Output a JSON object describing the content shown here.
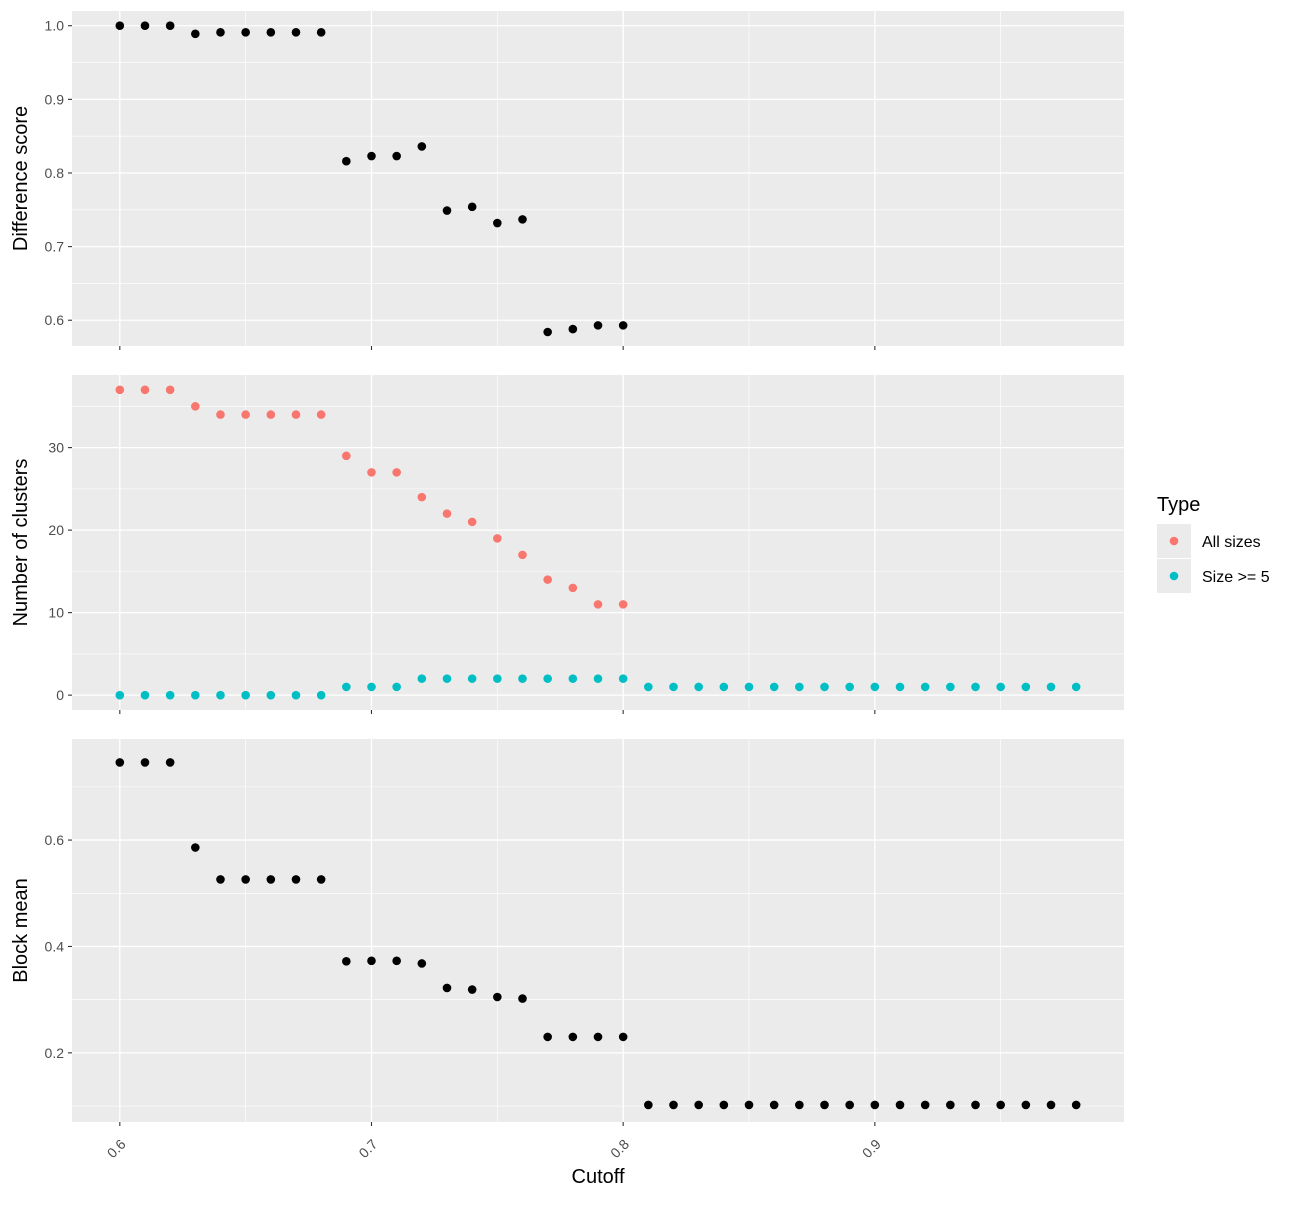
{
  "figure": {
    "xlabel": "Cutoff",
    "x_ticks": [
      "0.6",
      "0.7",
      "0.8",
      "0.9"
    ],
    "xlim": [
      0.581,
      0.999
    ]
  },
  "legend": {
    "title": "Type",
    "entries": [
      {
        "label": "All sizes",
        "color": "#f8766d"
      },
      {
        "label": "Size >= 5",
        "color": "#00bfc4"
      }
    ]
  },
  "colors": {
    "panel_bg": "#ebebeb",
    "grid": "#ffffff",
    "point_default": "#000000",
    "all_sizes": "#f8766d",
    "size5": "#00bfc4"
  },
  "chart_data": [
    {
      "type": "scatter",
      "ylabel": "Difference score",
      "ylim": [
        0.565,
        1.02
      ],
      "y_ticks": [
        0.6,
        0.7,
        0.8,
        0.9,
        1.0
      ],
      "y_tick_labels": [
        "0.6",
        "0.7",
        "0.8",
        "0.9",
        "1.0"
      ],
      "x": [
        0.6,
        0.61,
        0.62,
        0.63,
        0.64,
        0.65,
        0.66,
        0.67,
        0.68,
        0.69,
        0.7,
        0.71,
        0.72,
        0.73,
        0.74,
        0.75,
        0.76,
        0.77,
        0.78,
        0.79,
        0.8
      ],
      "series": [
        {
          "values": [
            1.0,
            1.0,
            1.0,
            0.989,
            0.991,
            0.991,
            0.991,
            0.991,
            0.991,
            0.816,
            0.823,
            0.823,
            0.836,
            0.749,
            0.754,
            0.732,
            0.737,
            0.584,
            0.588,
            0.593,
            0.593
          ],
          "color": "#000000"
        }
      ]
    },
    {
      "type": "scatter",
      "ylabel": "Number of clusters",
      "ylim": [
        -1.8,
        38.8
      ],
      "y_ticks": [
        0,
        10,
        20,
        30
      ],
      "y_tick_labels": [
        "0",
        "10",
        "20",
        "30"
      ],
      "legend_title": "Type",
      "series": [
        {
          "name": "All sizes",
          "color": "#f8766d",
          "x": [
            0.6,
            0.61,
            0.62,
            0.63,
            0.64,
            0.65,
            0.66,
            0.67,
            0.68,
            0.69,
            0.7,
            0.71,
            0.72,
            0.73,
            0.74,
            0.75,
            0.76,
            0.77,
            0.78,
            0.79,
            0.8
          ],
          "values": [
            37,
            37,
            37,
            35,
            34,
            34,
            34,
            34,
            34,
            29,
            27,
            27,
            24,
            22,
            21,
            19,
            17,
            14,
            13,
            11,
            11
          ]
        },
        {
          "name": "Size >= 5",
          "color": "#00bfc4",
          "x": [
            0.6,
            0.61,
            0.62,
            0.63,
            0.64,
            0.65,
            0.66,
            0.67,
            0.68,
            0.69,
            0.7,
            0.71,
            0.72,
            0.73,
            0.74,
            0.75,
            0.76,
            0.77,
            0.78,
            0.79,
            0.8,
            0.81,
            0.82,
            0.83,
            0.84,
            0.85,
            0.86,
            0.87,
            0.88,
            0.89,
            0.9,
            0.91,
            0.92,
            0.93,
            0.94,
            0.95,
            0.96,
            0.97,
            0.98
          ],
          "values": [
            0,
            0,
            0,
            0,
            0,
            0,
            0,
            0,
            0,
            1,
            1,
            1,
            2,
            2,
            2,
            2,
            2,
            2,
            2,
            2,
            2,
            1,
            1,
            1,
            1,
            1,
            1,
            1,
            1,
            1,
            1,
            1,
            1,
            1,
            1,
            1,
            1,
            1,
            1
          ]
        }
      ]
    },
    {
      "type": "scatter",
      "ylabel": "Block mean",
      "ylim": [
        0.07,
        0.79
      ],
      "y_ticks": [
        0.2,
        0.4,
        0.6
      ],
      "y_tick_labels": [
        "0.2",
        "0.4",
        "0.6"
      ],
      "x": [
        0.6,
        0.61,
        0.62,
        0.63,
        0.64,
        0.65,
        0.66,
        0.67,
        0.68,
        0.69,
        0.7,
        0.71,
        0.72,
        0.73,
        0.74,
        0.75,
        0.76,
        0.77,
        0.78,
        0.79,
        0.8,
        0.81,
        0.82,
        0.83,
        0.84,
        0.85,
        0.86,
        0.87,
        0.88,
        0.89,
        0.9,
        0.91,
        0.92,
        0.93,
        0.94,
        0.95,
        0.96,
        0.97,
        0.98
      ],
      "series": [
        {
          "values": [
            0.746,
            0.746,
            0.746,
            0.586,
            0.526,
            0.526,
            0.526,
            0.526,
            0.526,
            0.372,
            0.373,
            0.373,
            0.368,
            0.322,
            0.319,
            0.305,
            0.302,
            0.23,
            0.23,
            0.23,
            0.23,
            0.102,
            0.102,
            0.102,
            0.102,
            0.102,
            0.102,
            0.102,
            0.102,
            0.102,
            0.102,
            0.102,
            0.102,
            0.102,
            0.102,
            0.102,
            0.102,
            0.102,
            0.102
          ],
          "color": "#000000"
        }
      ]
    }
  ]
}
